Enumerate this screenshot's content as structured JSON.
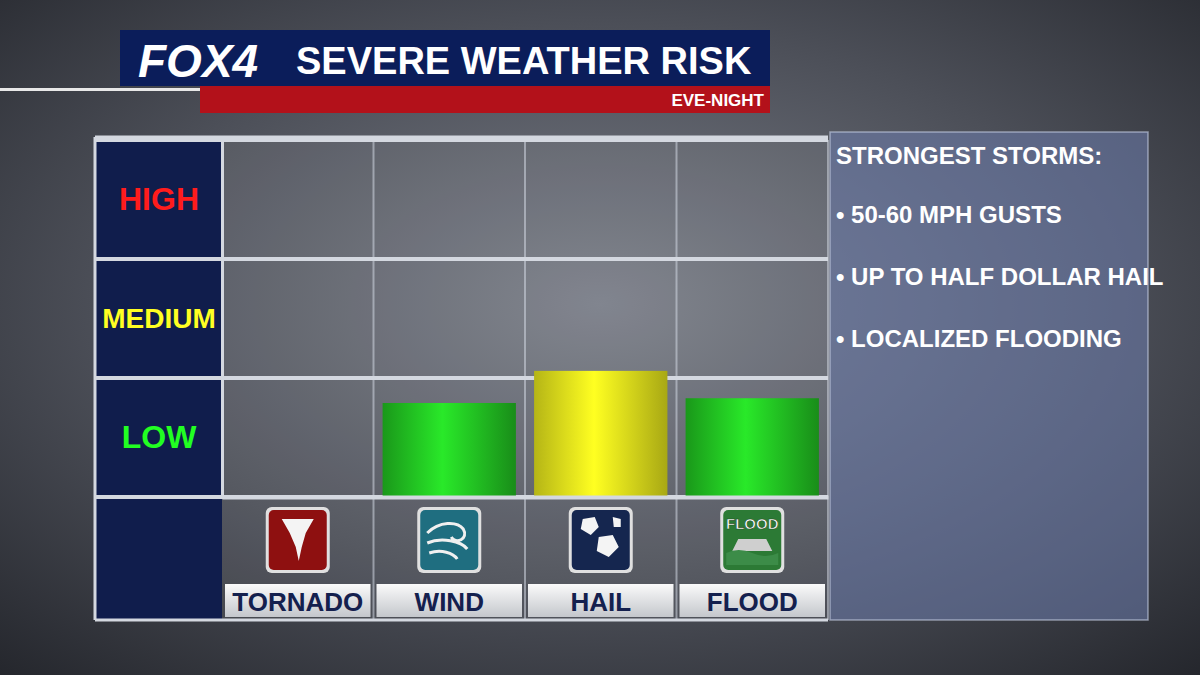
{
  "chart_data": {
    "type": "bar",
    "title": "SEVERE WEATHER RISK",
    "subtitle": "EVE-NIGHT",
    "categories": [
      "TORNADO",
      "WIND",
      "HAIL",
      "FLOOD"
    ],
    "values": [
      0,
      0.79,
      1.06,
      0.83
    ],
    "colors": [
      "#22c322",
      "#22c322",
      "#e8e81c",
      "#22c322"
    ],
    "ylim": [
      0,
      3
    ],
    "yticks": [
      {
        "value": 0.5,
        "label": "LOW"
      },
      {
        "value": 1.5,
        "label": "MEDIUM"
      },
      {
        "value": 2.5,
        "label": "HIGH"
      }
    ],
    "grid": true,
    "annotations": {
      "logo": "FOX4",
      "panel_heading": "STRONGEST STORMS:",
      "panel_items": [
        "• 50-60 MPH GUSTS",
        "• UP TO HALF DOLLAR HAIL",
        "• LOCALIZED FLOODING"
      ],
      "icon_text": "FLOOD"
    }
  }
}
